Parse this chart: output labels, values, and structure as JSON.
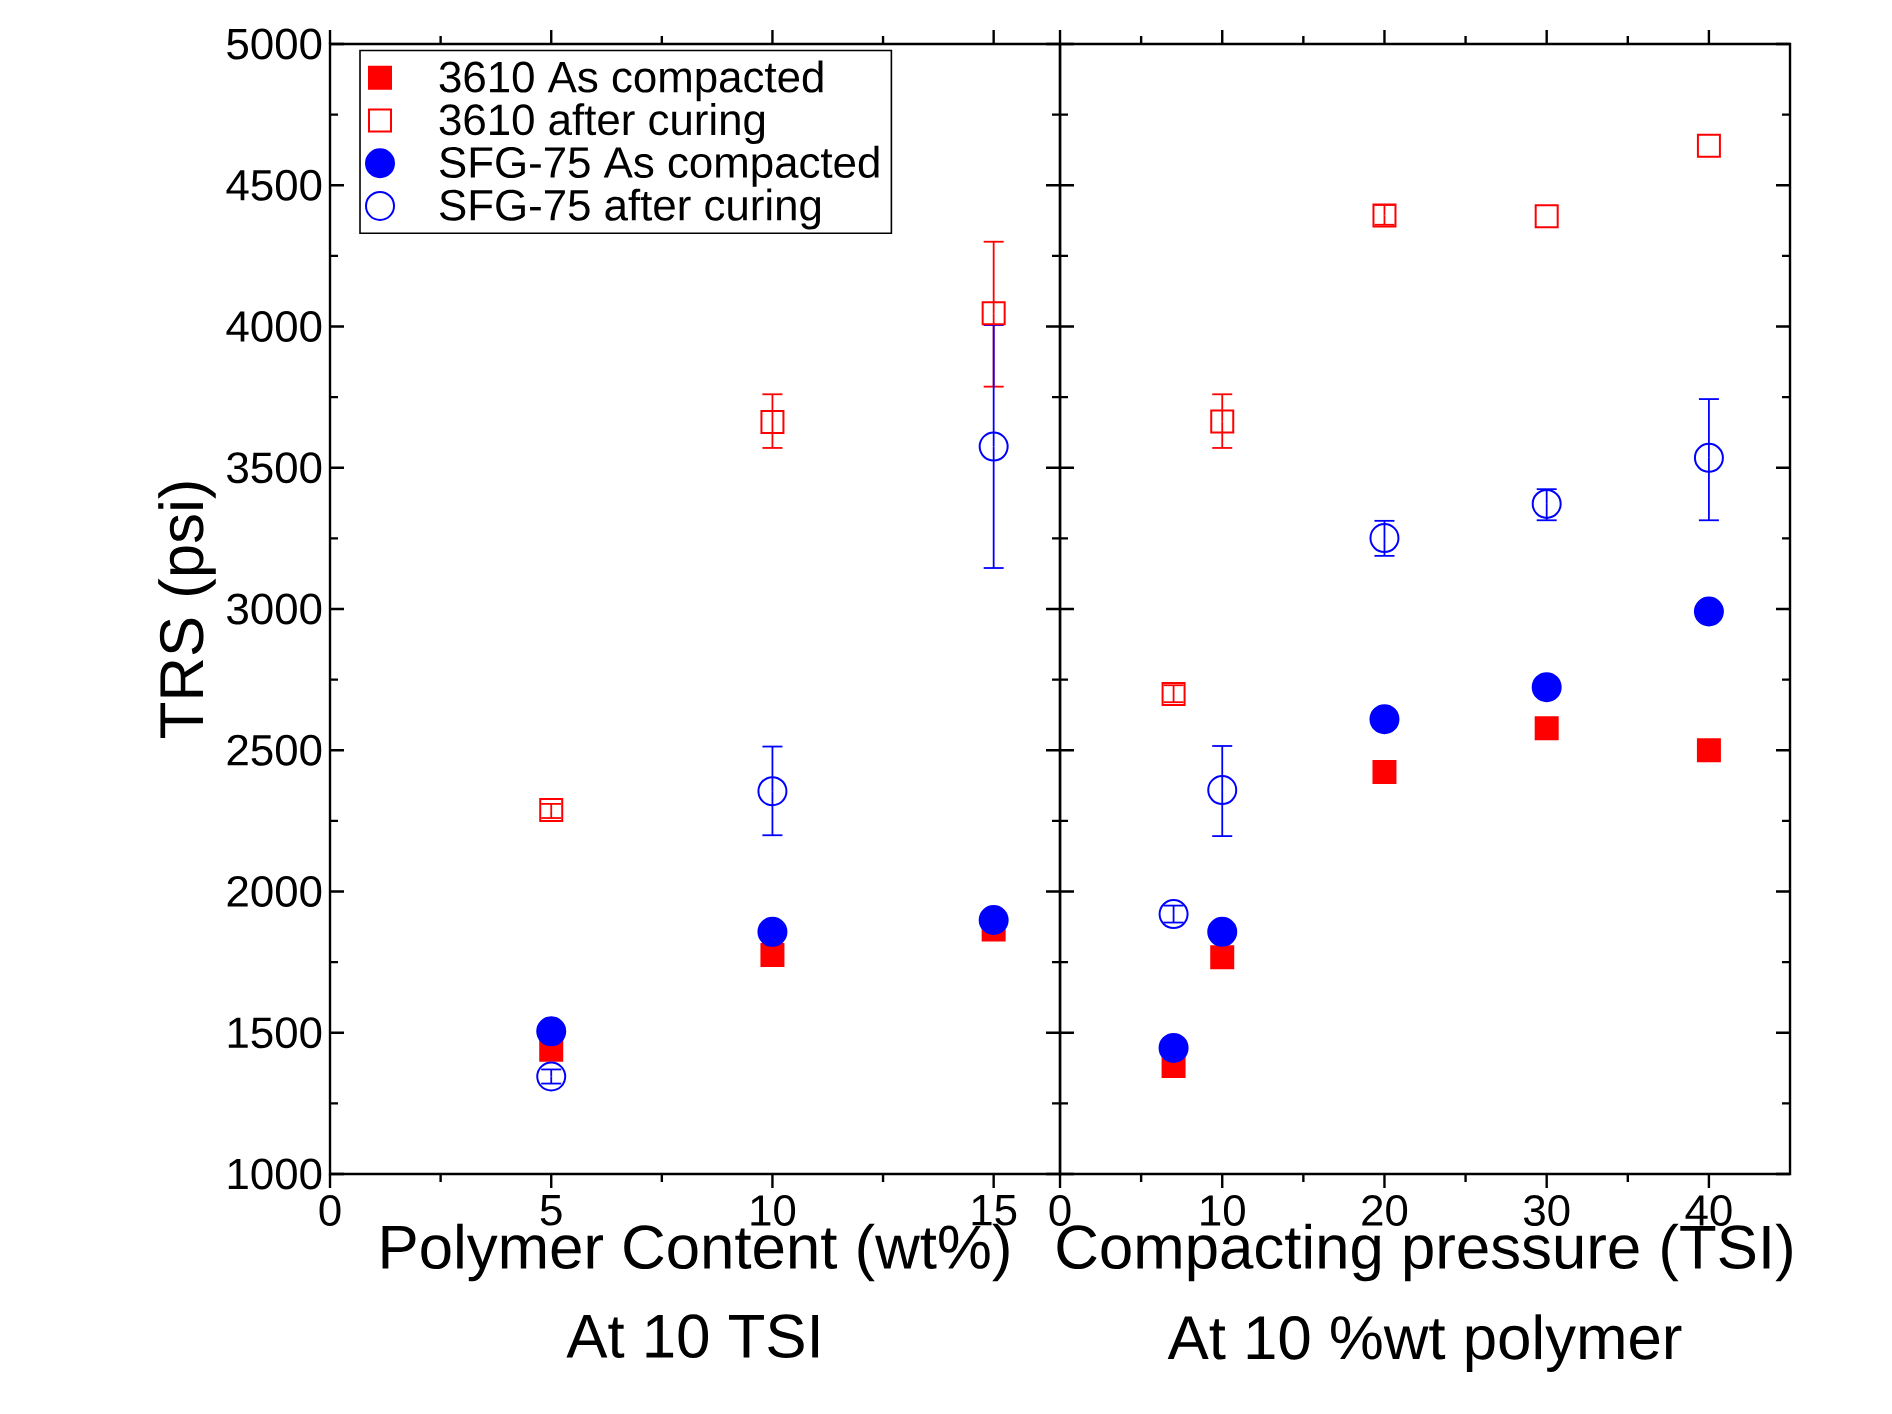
{
  "chart_data": [
    {
      "type": "scatter",
      "xlabel": "Polymer Content (wt%)",
      "ylabel": "TRS (psi)",
      "annotations": [
        "At 10 TSI"
      ],
      "x": [
        5,
        10,
        15
      ],
      "xlim": [
        0,
        16.5
      ],
      "xticks": [
        0,
        5,
        10,
        15
      ],
      "ylim": [
        1000,
        5000
      ],
      "yticks": [
        1000,
        1500,
        2000,
        2500,
        3000,
        3500,
        4000,
        4500,
        5000
      ],
      "grid": false,
      "legend": "top left",
      "series": [
        {
          "name": "3610 As compacted",
          "color": "#ff0000",
          "marker": "square",
          "values": [
            1440,
            1775,
            1865
          ]
        },
        {
          "name": "3610 after curing",
          "color": "#ff0000",
          "marker": "square-open",
          "values": [
            2288,
            3662,
            4047
          ],
          "errors": [
            [
              2260,
              2310
            ],
            [
              3570,
              3760
            ],
            [
              3787,
              4300
            ]
          ]
        },
        {
          "name": "SFG-75 As compacted",
          "color": "#0000ff",
          "marker": "circle",
          "values": [
            1505,
            1857,
            1899
          ]
        },
        {
          "name": "SFG-75 after curing",
          "color": "#0000ff",
          "marker": "circle-open",
          "values": [
            1345,
            2355,
            3575
          ],
          "errors": [
            [
              1320,
              1370
            ],
            [
              2199,
              2513
            ],
            [
              3145,
              4005
            ]
          ]
        }
      ]
    },
    {
      "type": "scatter",
      "xlabel": "Compacting pressure (TSI)",
      "annotations": [
        "At 10 %wt polymer"
      ],
      "x": [
        7,
        10,
        20,
        30,
        40
      ],
      "xlim": [
        0,
        45
      ],
      "xticks": [
        0,
        10,
        20,
        30,
        40
      ],
      "ylim": [
        1000,
        5000
      ],
      "yticks": [
        1000,
        1500,
        2000,
        2500,
        3000,
        3500,
        4000,
        4500,
        5000
      ],
      "grid": false,
      "tick_labels": "x",
      "series": [
        {
          "color": "#ff0000",
          "marker": "square",
          "values": [
            1382,
            1767,
            2423,
            2578,
            2500
          ]
        },
        {
          "color": "#ff0000",
          "marker": "square-open",
          "values": [
            2699,
            3664,
            4393,
            4390,
            4640
          ],
          "errors": [
            [
              2670,
              2730
            ],
            [
              3570,
              3760
            ],
            [
              4360,
              4430
            ],
            null,
            null
          ]
        },
        {
          "color": "#0000ff",
          "marker": "circle",
          "values": [
            1446,
            1857,
            2610,
            2723,
            2991
          ]
        },
        {
          "color": "#0000ff",
          "marker": "circle-open",
          "values": [
            1920,
            2359,
            3251,
            3372,
            3535
          ],
          "errors": [
            [
              1890,
              1950
            ],
            [
              2196,
              2515
            ],
            [
              3188,
              3312
            ],
            [
              3314,
              3424
            ],
            [
              3314,
              3743
            ]
          ]
        }
      ]
    }
  ]
}
